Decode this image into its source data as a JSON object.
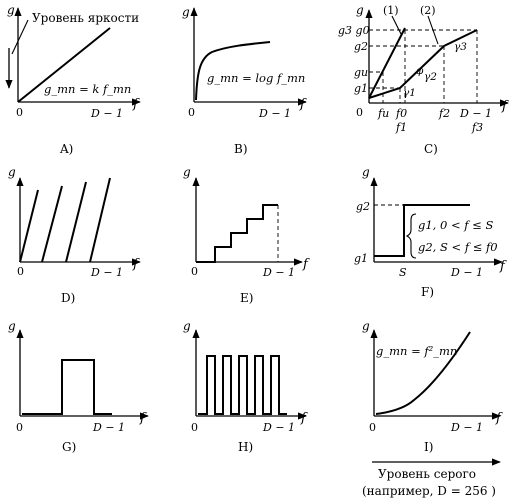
{
  "axis": {
    "y_symbol": "g",
    "x_symbol": "f",
    "origin": "0",
    "x_max": "D − 1"
  },
  "panels": [
    {
      "id": "A",
      "caption": "A)",
      "annotation": "Уровень яркости",
      "formula": "g_mn = k f_mn",
      "type": "linear"
    },
    {
      "id": "B",
      "caption": "B)",
      "formula": "g_mn = log f_mn",
      "type": "logarithmic"
    },
    {
      "id": "C",
      "caption": "C)",
      "type": "piecewise-linear",
      "y_labels": [
        "g3 g0",
        "g2",
        "gu",
        "g1"
      ],
      "x_labels": [
        "fu",
        "f0",
        "f1",
        "f2",
        "D − 1",
        "f3"
      ],
      "segment_labels": [
        "(1)",
        "(2)",
        "γ1",
        "γ2",
        "γ3",
        "φ"
      ]
    },
    {
      "id": "D",
      "caption": "D)",
      "type": "sawtooth"
    },
    {
      "id": "E",
      "caption": "E)",
      "type": "staircase"
    },
    {
      "id": "F",
      "caption": "F)",
      "type": "threshold",
      "y_labels": [
        "g2",
        "g1"
      ],
      "x_labels": [
        "S"
      ],
      "rule": [
        "g1, 0 < f ≤ S",
        "g2, S < f ≤ f0"
      ]
    },
    {
      "id": "G",
      "caption": "G)",
      "type": "single-pulse"
    },
    {
      "id": "H",
      "caption": "H)",
      "type": "pulse-train"
    },
    {
      "id": "I",
      "caption": "I)",
      "formula": "g_mn = f²_mn",
      "type": "quadratic"
    }
  ],
  "footnote": {
    "line1": "Уровень серого",
    "line2": "(например, D = 256 )"
  }
}
